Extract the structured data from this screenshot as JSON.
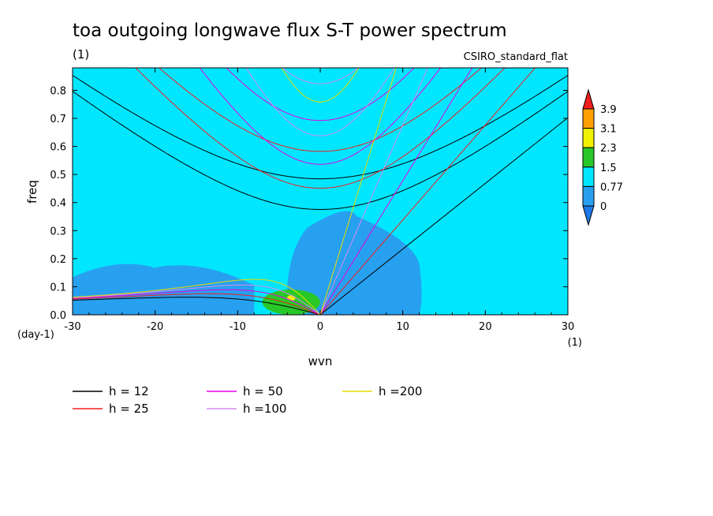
{
  "chart_data": {
    "type": "heatmap",
    "title": "toa outgoing longwave flux S-T power spectrum",
    "subtitle": "(1)",
    "dataset": "CSIRO_standard_flat",
    "xlabel": "wvn",
    "ylabel": "freq",
    "x_unit": "(1)",
    "y_unit": "(day-1)",
    "xlim": [
      -30,
      30
    ],
    "ylim": [
      0,
      0.88
    ],
    "x_ticks": [
      -30,
      -20,
      -10,
      0,
      10,
      20,
      30
    ],
    "y_ticks": [
      0.0,
      0.1,
      0.2,
      0.3,
      0.4,
      0.5,
      0.6,
      0.7,
      0.8
    ],
    "y_tick_labels": [
      "0.0",
      "0.1",
      "0.2",
      "0.3",
      "0.4",
      "0.5",
      "0.6",
      "0.7",
      "0.8"
    ],
    "colorbar": {
      "levels": [
        "0",
        "0.77",
        "1.5",
        "2.3",
        "3.1",
        "3.9"
      ],
      "colors": [
        "#1e78e6",
        "#28a0f0",
        "#00e6ff",
        "#28c828",
        "#f0f000",
        "#ffa000",
        "#f01e1e"
      ]
    },
    "background_level_color": "#00e6ff",
    "dispersion_curves": [
      {
        "name": "h = 12",
        "h": 12,
        "color": "#000000"
      },
      {
        "name": "h = 25",
        "h": 25,
        "color": "#f01e1e"
      },
      {
        "name": "h = 50",
        "h": 50,
        "color": "#e600e6"
      },
      {
        "name": "h =100",
        "h": 100,
        "color": "#d28cf0"
      },
      {
        "name": "h =200",
        "h": 200,
        "color": "#e6dc00"
      }
    ],
    "low_power_regions": [
      {
        "x_range": [
          -30,
          -8
        ],
        "y_range": [
          0.0,
          0.19
        ]
      },
      {
        "x_range": [
          -4,
          12
        ],
        "y_range": [
          0.0,
          0.38
        ]
      }
    ],
    "high_power_regions": [
      {
        "x_range": [
          -7,
          0
        ],
        "y_range": [
          0.0,
          0.09
        ],
        "level": "1.5-2.3"
      },
      {
        "x_range": [
          -4,
          -3
        ],
        "y_range": [
          0.05,
          0.07
        ],
        "level": "2.3-3.1"
      }
    ]
  }
}
